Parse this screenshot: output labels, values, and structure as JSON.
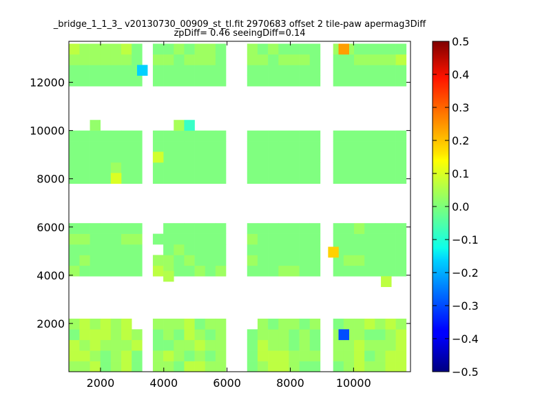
{
  "chart_data": {
    "type": "heatmap",
    "title": "_bridge_1_1_3_ v20130730_00909_st_tl.fit 2970683 offset 2 tile-paw apermag3Diff",
    "subtitle": "zpDiff= 0.46 seeingDiff=0.14",
    "xlabel": "",
    "ylabel": "",
    "xlim": [
      1000,
      11800
    ],
    "ylim": [
      0,
      13700
    ],
    "xticks": [
      2000,
      4000,
      6000,
      8000,
      10000
    ],
    "yticks": [
      2000,
      4000,
      6000,
      8000,
      10000,
      12000
    ],
    "colorbar": {
      "colormap": "jet",
      "vmin": -0.5,
      "vmax": 0.5,
      "ticks": [
        "0.5",
        "0.4",
        "0.3",
        "0.2",
        "0.1",
        "0.0",
        "−0.1",
        "−0.2",
        "−0.3",
        "−0.4",
        "−0.5"
      ]
    },
    "cell_size": [
      330,
      440
    ],
    "grid": false,
    "x_columns": [
      1170,
      1500,
      1830,
      2160,
      2490,
      2820,
      3150,
      3820,
      4150,
      4480,
      4810,
      5140,
      5470,
      5800,
      6800,
      7130,
      7460,
      7790,
      8120,
      8450,
      8780,
      9520,
      9850,
      10180,
      10510,
      10840,
      11170,
      11500
    ],
    "y_rows": [
      220,
      660,
      1100,
      1540,
      1980,
      4180,
      4620,
      5060,
      5500,
      5940,
      8020,
      8460,
      8900,
      9340,
      9780,
      12060,
      12500,
      12940,
      13380
    ],
    "value_map": [
      "gglmglmggmllggmgllgmmmglggll",
      "llgmglmglgmgmgmlllggggglmgll",
      "lglggglmmgglggmlggmgmgglgggl",
      "mlllglgmgmlgmgmgggmgmgggmmgl",
      "glglgl.ggglmgg.gmggmgmgglglg",
      "gmmmmmmlgmmgmgmmmggmmmmmmmmm",
      "mgmmmmmggmgmmmgmmmmmmmggmmmm",
      "mmmmmmm.mgmmmmmmmmmmmmmmmmmm",
      "ggmmmggmmmmmmmgmmmmmmmmmmmmm",
      "mmmmmmm.mmmmmmmmmmmmmmmgmmmm",
      "mmmmgmmmmmmmmmmmmmmmmmmmmmmm",
      "mmmmgmmmmmmmmmmmmmmmmmmmmmmm",
      "mmmmmmmgmmmmmmmmmmmmmmmmmmmm",
      "mmmmmmmmmmmmmmmmmmmmmmmmmmmm",
      "mmmmmmmmmmmmmmmmmmmmmmmmmmmm",
      "mmmmmmmmmmmmmmmmmmmmmmmmmmmm",
      "mmmmmmmmmmmmmmmmmmmmmmmmmmmm",
      "ggggggmggmgggmggmgggmmmggggl",
      "lgggglmmmgmggmgmgmmmmggmmmmm"
    ],
    "value_legend": {
      "m": 0.0,
      "g": 0.03,
      "l": 0.06,
      ".": null
    },
    "cells_override": [
      {
        "x": 1170,
        "y": 11890,
        "v": 0.0,
        "note": "edge"
      }
    ],
    "special_cells": [
      {
        "x": 9690,
        "y": 13380,
        "v": 0.22
      },
      {
        "x": 3320,
        "y": 12500,
        "v": -0.17
      },
      {
        "x": 9690,
        "y": 1540,
        "v": -0.3
      },
      {
        "x": 9360,
        "y": 4960,
        "v": 0.17
      },
      {
        "x": 11030,
        "y": 3740,
        "v": 0.06
      },
      {
        "x": 1830,
        "y": 10220,
        "v": 0.02
      },
      {
        "x": 4480,
        "y": 10220,
        "v": 0.04
      },
      {
        "x": 4810,
        "y": 10220,
        "v": -0.07
      },
      {
        "x": 3820,
        "y": 8900,
        "v": 0.08
      },
      {
        "x": 2490,
        "y": 8020,
        "v": 0.09
      },
      {
        "x": 4150,
        "y": 3960,
        "v": 0.05
      }
    ]
  }
}
